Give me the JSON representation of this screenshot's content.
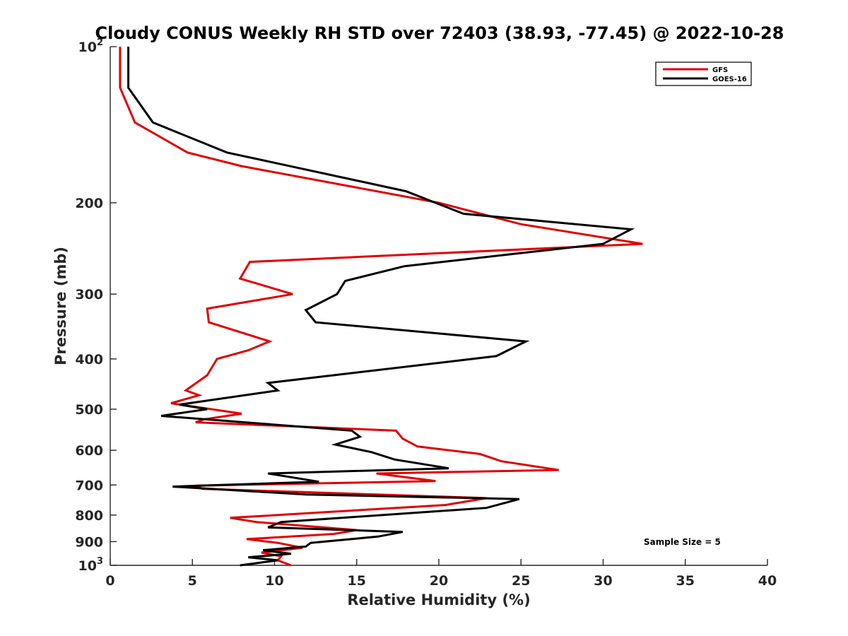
{
  "chart_data": {
    "type": "line",
    "title": "Cloudy CONUS Weekly RH STD over 72403 (38.93, -77.45) @ 2022-10-28",
    "xlabel": "Relative Humidity (%)",
    "ylabel": "Pressure (mb)",
    "xlim": [
      0,
      40
    ],
    "ylim": [
      100,
      1000
    ],
    "y_scale": "log",
    "y_reversed": true,
    "grid": false,
    "legend_position": "top-right",
    "annotation": "Sample Size = 5",
    "x_ticks": [
      "0",
      "5",
      "10",
      "15",
      "20",
      "25",
      "30",
      "35",
      "40"
    ],
    "y_ticks": [
      {
        "value": 100,
        "base": "10",
        "exp": "2"
      },
      {
        "value": 200,
        "label": "200"
      },
      {
        "value": 300,
        "label": "300"
      },
      {
        "value": 400,
        "label": "400"
      },
      {
        "value": 500,
        "label": "500"
      },
      {
        "value": 600,
        "label": "600"
      },
      {
        "value": 700,
        "label": "700"
      },
      {
        "value": 800,
        "label": "800"
      },
      {
        "value": 900,
        "label": "900"
      },
      {
        "value": 1000,
        "base": "10",
        "exp": "3"
      }
    ],
    "series": [
      {
        "name": "GFS",
        "color": "#e00000",
        "points": [
          [
            0.6,
            100
          ],
          [
            0.6,
            120
          ],
          [
            1.5,
            140
          ],
          [
            4.7,
            160
          ],
          [
            8.0,
            170
          ],
          [
            20.0,
            200
          ],
          [
            25.0,
            220
          ],
          [
            32.4,
            240
          ],
          [
            8.5,
            260
          ],
          [
            7.9,
            280
          ],
          [
            11.1,
            300
          ],
          [
            5.9,
            320
          ],
          [
            6.0,
            340
          ],
          [
            9.7,
            370
          ],
          [
            8.4,
            385
          ],
          [
            6.5,
            400
          ],
          [
            5.9,
            430
          ],
          [
            4.6,
            460
          ],
          [
            5.4,
            470
          ],
          [
            3.7,
            487
          ],
          [
            8.0,
            510
          ],
          [
            5.7,
            523
          ],
          [
            5.2,
            530
          ],
          [
            17.4,
            550
          ],
          [
            17.8,
            570
          ],
          [
            18.7,
            590
          ],
          [
            22.5,
            610
          ],
          [
            23.8,
            630
          ],
          [
            27.3,
            655
          ],
          [
            16.2,
            665
          ],
          [
            19.8,
            688
          ],
          [
            5.2,
            702
          ],
          [
            5.6,
            712
          ],
          [
            22.9,
            742
          ],
          [
            20.4,
            765
          ],
          [
            13.0,
            790
          ],
          [
            7.3,
            810
          ],
          [
            8.9,
            825
          ],
          [
            15.0,
            855
          ],
          [
            13.6,
            870
          ],
          [
            8.3,
            890
          ],
          [
            10.2,
            905
          ],
          [
            11.7,
            925
          ],
          [
            9.2,
            945
          ],
          [
            10.4,
            960
          ],
          [
            10.2,
            978
          ],
          [
            11.0,
            1000
          ]
        ]
      },
      {
        "name": "GOES-16",
        "color": "#000000",
        "points": [
          [
            1.1,
            100
          ],
          [
            1.1,
            120
          ],
          [
            2.6,
            140
          ],
          [
            7.1,
            160
          ],
          [
            18.0,
            190
          ],
          [
            21.5,
            210
          ],
          [
            31.7,
            225
          ],
          [
            30.0,
            240
          ],
          [
            17.9,
            265
          ],
          [
            14.3,
            283
          ],
          [
            13.8,
            300
          ],
          [
            11.9,
            322
          ],
          [
            12.5,
            340
          ],
          [
            25.3,
            370
          ],
          [
            23.5,
            395
          ],
          [
            9.6,
            445
          ],
          [
            10.2,
            460
          ],
          [
            4.2,
            490
          ],
          [
            5.9,
            500
          ],
          [
            3.1,
            515
          ],
          [
            14.7,
            550
          ],
          [
            15.2,
            565
          ],
          [
            13.7,
            585
          ],
          [
            15.9,
            605
          ],
          [
            17.3,
            625
          ],
          [
            20.6,
            650
          ],
          [
            9.6,
            665
          ],
          [
            12.7,
            690
          ],
          [
            3.8,
            705
          ],
          [
            11.9,
            730
          ],
          [
            24.9,
            745
          ],
          [
            22.9,
            775
          ],
          [
            10.4,
            825
          ],
          [
            9.6,
            845
          ],
          [
            17.8,
            862
          ],
          [
            16.3,
            880
          ],
          [
            12.2,
            905
          ],
          [
            11.9,
            920
          ],
          [
            9.3,
            935
          ],
          [
            11.0,
            950
          ],
          [
            8.4,
            965
          ],
          [
            10.2,
            978
          ],
          [
            7.9,
            1000
          ]
        ]
      }
    ]
  }
}
